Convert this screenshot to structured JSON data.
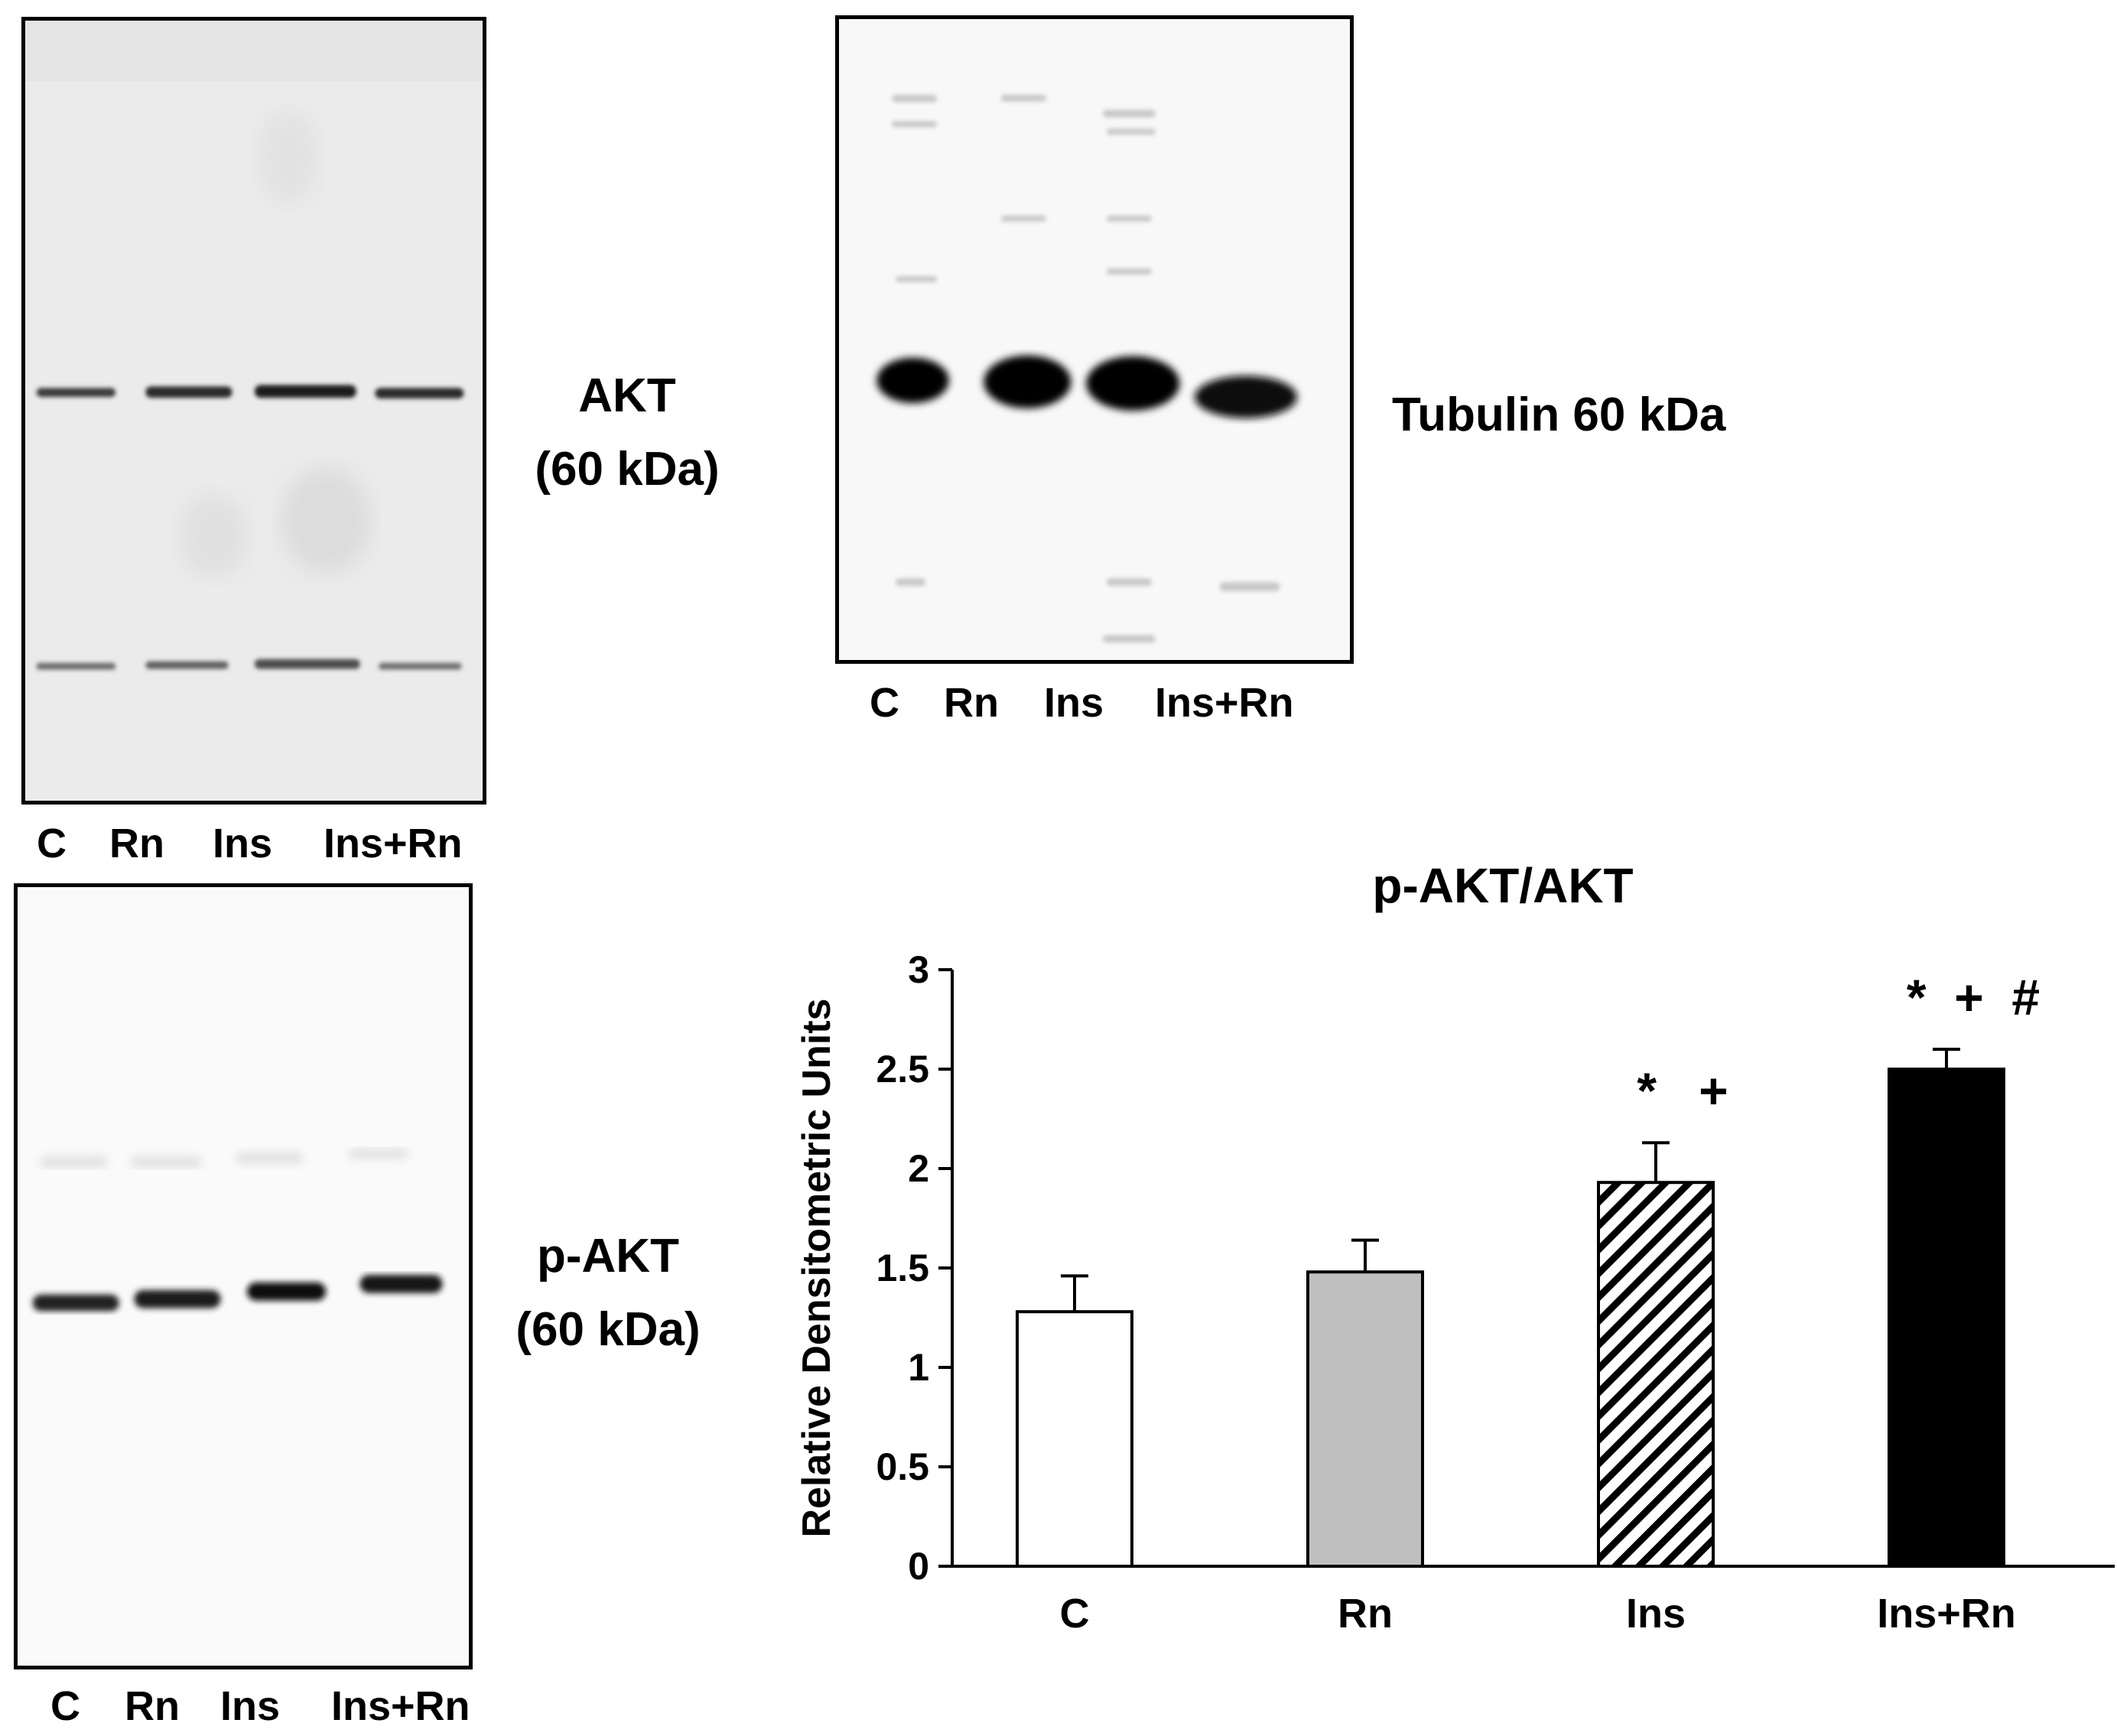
{
  "blots": {
    "akt": {
      "label_line1": "AKT",
      "label_line2": "(60 kDa)",
      "lanes": [
        "C",
        "Rn",
        "Ins",
        "Ins+Rn"
      ]
    },
    "tubulin": {
      "label": "Tubulin 60 kDa",
      "lanes": [
        "C",
        "Rn",
        "Ins",
        "Ins+Rn"
      ]
    },
    "pakt": {
      "label_line1": "p-AKT",
      "label_line2": "(60 kDa)",
      "lanes": [
        "C",
        "Rn",
        "Ins",
        "Ins+Rn"
      ]
    }
  },
  "chart_data": {
    "type": "bar",
    "title": "p-AKT/AKT",
    "xlabel": "",
    "ylabel": "Relative Densitometric Units",
    "categories": [
      "C",
      "Rn",
      "Ins",
      "Ins+Rn"
    ],
    "values": [
      1.28,
      1.48,
      1.93,
      2.5
    ],
    "errors": [
      0.18,
      0.16,
      0.2,
      0.1
    ],
    "annotations": [
      "",
      "",
      "*   +",
      "*  +  #"
    ],
    "fills": [
      "#ffffff",
      "#bfbfbf",
      "hatch",
      "#000000"
    ],
    "ylim": [
      0,
      3
    ],
    "yticks": [
      "0",
      "0.5",
      "1",
      "1.5",
      "2",
      "2.5",
      "3"
    ],
    "grid": false
  }
}
